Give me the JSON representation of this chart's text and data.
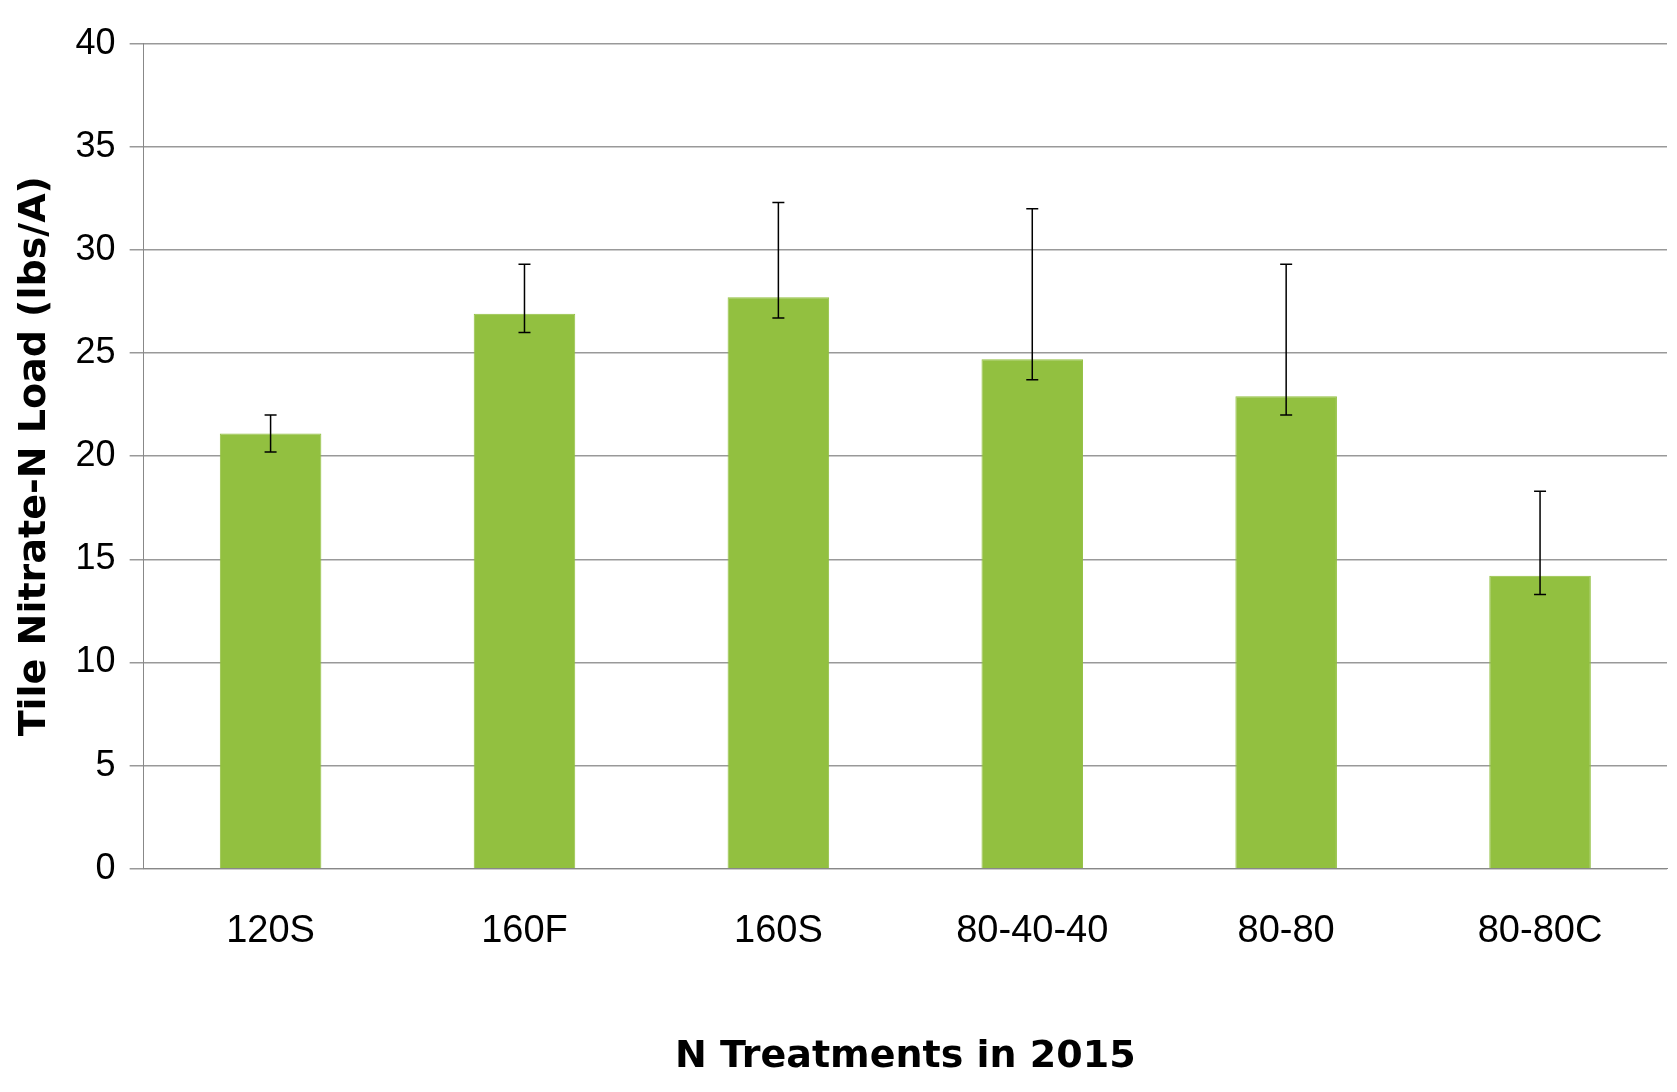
{
  "chart_data": {
    "type": "bar",
    "xlabel": "N Treatments in 2015",
    "ylabel": "Tile Nitrate-N Load (lbs/A)",
    "categories": [
      "120S",
      "160F",
      "160S",
      "80-40-40",
      "80-80",
      "80-80C"
    ],
    "values": [
      21.1,
      26.9,
      27.7,
      24.7,
      22.9,
      14.2
    ],
    "errors": [
      [
        20.2,
        22.0
      ],
      [
        26.0,
        29.3
      ],
      [
        26.7,
        32.3
      ],
      [
        23.7,
        32.0
      ],
      [
        22.0,
        29.3
      ],
      [
        13.3,
        18.3
      ]
    ],
    "color": "#92c040",
    "ylim": [
      0,
      40
    ],
    "yticks": [
      0,
      5,
      10,
      15,
      20,
      25,
      30,
      35,
      40
    ],
    "grid": "y",
    "legend": false
  }
}
